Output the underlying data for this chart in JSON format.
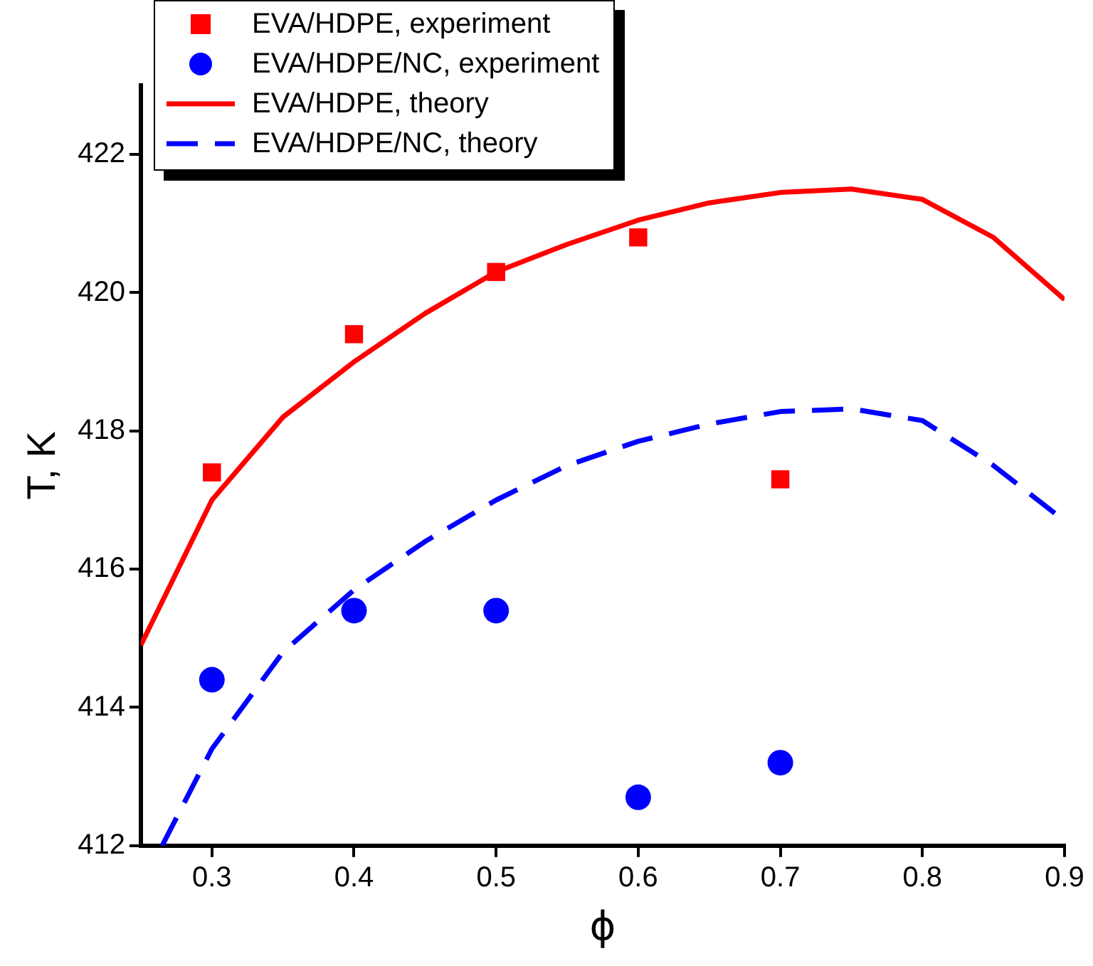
{
  "chart_data": {
    "type": "scatter",
    "xlabel": "ϕ",
    "ylabel": "T, K",
    "xlim": [
      0.25,
      0.9
    ],
    "ylim": [
      412,
      423
    ],
    "xticks": [
      0.3,
      0.4,
      0.5,
      0.6,
      0.7,
      0.8,
      0.9
    ],
    "yticks": [
      412,
      414,
      416,
      418,
      420,
      422
    ],
    "grid": false,
    "legend": "top left",
    "series": [
      {
        "name": "EVA/HDPE, experiment",
        "marker": "square",
        "color": "#ff0000",
        "x": [
          0.3,
          0.4,
          0.5,
          0.6,
          0.7
        ],
        "values": [
          417.4,
          419.4,
          420.3,
          420.8,
          417.3
        ]
      },
      {
        "name": "EVA/HDPE/NC, experiment",
        "marker": "circle",
        "color": "#0000ff",
        "x": [
          0.3,
          0.4,
          0.5,
          0.6,
          0.7
        ],
        "values": [
          414.4,
          415.4,
          415.4,
          412.7,
          413.2
        ]
      },
      {
        "name": "EVA/HDPE, theory",
        "type": "line",
        "marker": "none",
        "line_style": "solid",
        "color": "#ff0000",
        "x": [
          0.25,
          0.3,
          0.35,
          0.4,
          0.45,
          0.5,
          0.55,
          0.6,
          0.65,
          0.7,
          0.75,
          0.8,
          0.85,
          0.9
        ],
        "values": [
          414.9,
          417.0,
          418.2,
          419.0,
          419.7,
          420.3,
          420.7,
          421.05,
          421.3,
          421.45,
          421.5,
          421.35,
          420.8,
          419.9
        ]
      },
      {
        "name": "EVA/HDPE/NC, theory",
        "type": "line",
        "marker": "none",
        "line_style": "dashed",
        "color": "#0000ff",
        "x": [
          0.265,
          0.3,
          0.35,
          0.4,
          0.45,
          0.5,
          0.55,
          0.6,
          0.65,
          0.7,
          0.75,
          0.8,
          0.85,
          0.9
        ],
        "values": [
          412.0,
          413.4,
          414.8,
          415.7,
          416.4,
          417.0,
          417.5,
          417.85,
          418.1,
          418.28,
          418.32,
          418.15,
          417.5,
          416.7
        ]
      }
    ]
  }
}
